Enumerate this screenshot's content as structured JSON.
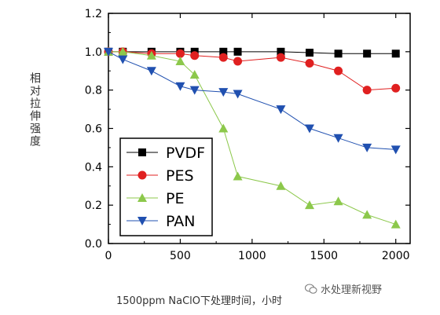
{
  "chart_data": {
    "type": "line",
    "title": "",
    "xlabel": "1500ppm NaClO下处理时间，小时",
    "ylabel": "相对拉伸强度",
    "xlim": [
      0,
      2100
    ],
    "ylim": [
      0.0,
      1.2
    ],
    "xticks": [
      "0",
      "500",
      "1000",
      "1500",
      "2000"
    ],
    "yticks": [
      "0.0",
      "0.2",
      "0.4",
      "0.6",
      "0.8",
      "1.0",
      "1.2"
    ],
    "grid": false,
    "legend_position": "lower-left",
    "series": [
      {
        "name": "PVDF",
        "marker": "square",
        "color": "#000000",
        "x": [
          0,
          100,
          300,
          500,
          600,
          800,
          900,
          1200,
          1400,
          1600,
          1800,
          2000
        ],
        "y": [
          1.0,
          1.0,
          1.0,
          1.0,
          1.0,
          1.0,
          1.0,
          1.0,
          0.995,
          0.99,
          0.99,
          0.99
        ]
      },
      {
        "name": "PES",
        "marker": "circle",
        "color": "#e02020",
        "x": [
          0,
          100,
          300,
          500,
          600,
          800,
          900,
          1200,
          1400,
          1600,
          1800,
          2000
        ],
        "y": [
          1.0,
          1.0,
          0.99,
          0.99,
          0.98,
          0.97,
          0.95,
          0.97,
          0.94,
          0.9,
          0.8,
          0.81
        ]
      },
      {
        "name": "PE",
        "marker": "triangle-up",
        "color": "#8cc84b",
        "x": [
          0,
          100,
          300,
          500,
          600,
          800,
          900,
          1200,
          1400,
          1600,
          1800,
          2000
        ],
        "y": [
          1.0,
          1.0,
          0.98,
          0.95,
          0.88,
          0.6,
          0.35,
          0.3,
          0.2,
          0.22,
          0.15,
          0.1
        ]
      },
      {
        "name": "PAN",
        "marker": "triangle-down",
        "color": "#2050b0",
        "x": [
          0,
          100,
          300,
          500,
          600,
          800,
          900,
          1200,
          1400,
          1600,
          1800,
          2000
        ],
        "y": [
          1.0,
          0.96,
          0.9,
          0.82,
          0.8,
          0.79,
          0.78,
          0.7,
          0.6,
          0.55,
          0.5,
          0.49
        ]
      }
    ]
  },
  "watermark": {
    "text": "水处理新视野",
    "icon": "wechat-icon"
  }
}
